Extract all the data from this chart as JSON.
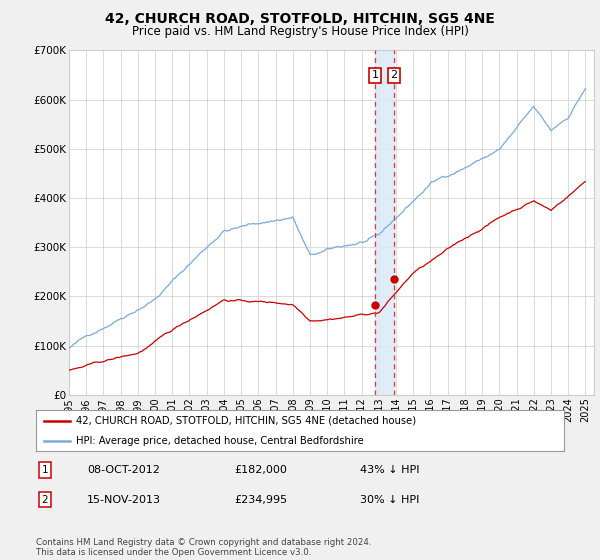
{
  "title": "42, CHURCH ROAD, STOTFOLD, HITCHIN, SG5 4NE",
  "subtitle": "Price paid vs. HM Land Registry's House Price Index (HPI)",
  "legend_line1": "42, CHURCH ROAD, STOTFOLD, HITCHIN, SG5 4NE (detached house)",
  "legend_line2": "HPI: Average price, detached house, Central Bedfordshire",
  "footer": "Contains HM Land Registry data © Crown copyright and database right 2024.\nThis data is licensed under the Open Government Licence v3.0.",
  "sale1_date_str": "08-OCT-2012",
  "sale1_price_str": "£182,000",
  "sale1_pct_str": "43% ↓ HPI",
  "sale2_date_str": "15-NOV-2013",
  "sale2_price_str": "£234,995",
  "sale2_pct_str": "30% ↓ HPI",
  "sale1_x": 2012.77,
  "sale1_y": 182000,
  "sale2_x": 2013.88,
  "sale2_y": 234995,
  "hpi_color": "#7aaadd",
  "price_color": "#cc0000",
  "vline_color": "#ee3333",
  "box_edge_color": "#cc0000",
  "highlight_color": "#daeaf7",
  "ylim": [
    0,
    700000
  ],
  "xlim": [
    1995.0,
    2025.5
  ],
  "yticks": [
    0,
    100000,
    200000,
    300000,
    400000,
    500000,
    600000,
    700000
  ],
  "ytick_labels": [
    "£0",
    "£100K",
    "£200K",
    "£300K",
    "£400K",
    "£500K",
    "£600K",
    "£700K"
  ],
  "bg_color": "#f0f0f0",
  "plot_bg": "#ffffff",
  "grid_color": "#cccccc"
}
